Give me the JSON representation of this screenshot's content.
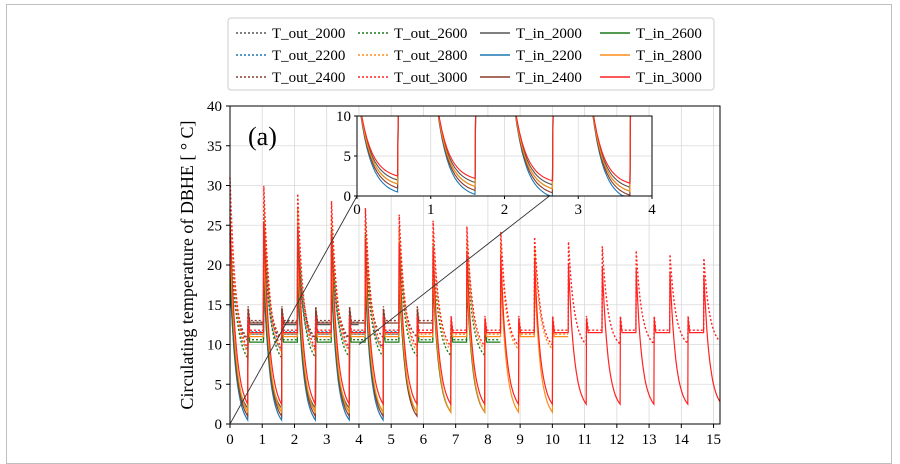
{
  "chart_data": {
    "type": "line",
    "panel_label": "(a)",
    "ylabel": "Circulating temperature of DBHE [ ° C]",
    "xlim": [
      0,
      15.2
    ],
    "ylim": [
      0,
      40
    ],
    "xticks": [
      0,
      1,
      2,
      3,
      4,
      5,
      6,
      7,
      8,
      9,
      10,
      11,
      12,
      13,
      14,
      15
    ],
    "yticks": [
      0,
      5,
      10,
      15,
      20,
      25,
      30,
      35,
      40
    ],
    "grid": true,
    "legend": {
      "placement": "top-center",
      "columns": 4,
      "entries": [
        {
          "name": "T_out_2000",
          "style": "dotted",
          "color": "#555555"
        },
        {
          "name": "T_out_2200",
          "style": "dotted",
          "color": "#1f77b4"
        },
        {
          "name": "T_out_2400",
          "style": "dotted",
          "color": "#8c3b2a"
        },
        {
          "name": "T_out_2600",
          "style": "dotted",
          "color": "#1a7a1a"
        },
        {
          "name": "T_out_2800",
          "style": "dotted",
          "color": "#ff8c1a"
        },
        {
          "name": "T_out_3000",
          "style": "dotted",
          "color": "#ff2222"
        },
        {
          "name": "T_in_2000",
          "style": "solid",
          "color": "#555555"
        },
        {
          "name": "T_in_2200",
          "style": "solid",
          "color": "#1f77b4"
        },
        {
          "name": "T_in_2400",
          "style": "solid",
          "color": "#8c3b2a"
        },
        {
          "name": "T_in_2600",
          "style": "solid",
          "color": "#1a7a1a"
        },
        {
          "name": "T_in_2800",
          "style": "solid",
          "color": "#ff8c1a"
        },
        {
          "name": "T_in_3000",
          "style": "solid",
          "color": "#ff2222"
        }
      ]
    },
    "series": [
      {
        "depth": 2000,
        "color": "#555555",
        "end_time": 4.0,
        "peak_out": 21,
        "plateau_out": 12.5,
        "peak_in": 16,
        "plateau_in": 12.5,
        "min_in": 2.0
      },
      {
        "depth": 2200,
        "color": "#1f77b4",
        "end_time": 5.25,
        "peak_out": 22,
        "plateau_out": 11.3,
        "peak_in": 17,
        "plateau_in": 11.3,
        "min_in": 0.5
      },
      {
        "depth": 2400,
        "color": "#8c3b2a",
        "end_time": 6.3,
        "peak_out": 24,
        "plateau_out": 12.7,
        "peak_in": 18,
        "plateau_in": 12.7,
        "min_in": 1.0
      },
      {
        "depth": 2600,
        "color": "#1a7a1a",
        "end_time": 8.4,
        "peak_out": 25,
        "plateau_out": 10.3,
        "peak_in": 19,
        "plateau_in": 10.3,
        "min_in": 1.5
      },
      {
        "depth": 2800,
        "color": "#ff8c1a",
        "end_time": 10.5,
        "peak_out": 27,
        "plateau_out": 11.0,
        "peak_in": 21,
        "plateau_in": 11.0,
        "min_in": 1.5
      },
      {
        "depth": 3000,
        "color": "#ff2222",
        "end_time": 15.2,
        "peak_out": 29,
        "plateau_out": 11.5,
        "peak_in": 24,
        "plateau_in": 11.5,
        "min_in": 2.5
      }
    ],
    "inset": {
      "xlim": [
        0,
        4
      ],
      "ylim": [
        0,
        10
      ],
      "xticks": [
        0,
        1,
        2,
        3,
        4
      ],
      "yticks": [
        0,
        5,
        10
      ]
    }
  }
}
